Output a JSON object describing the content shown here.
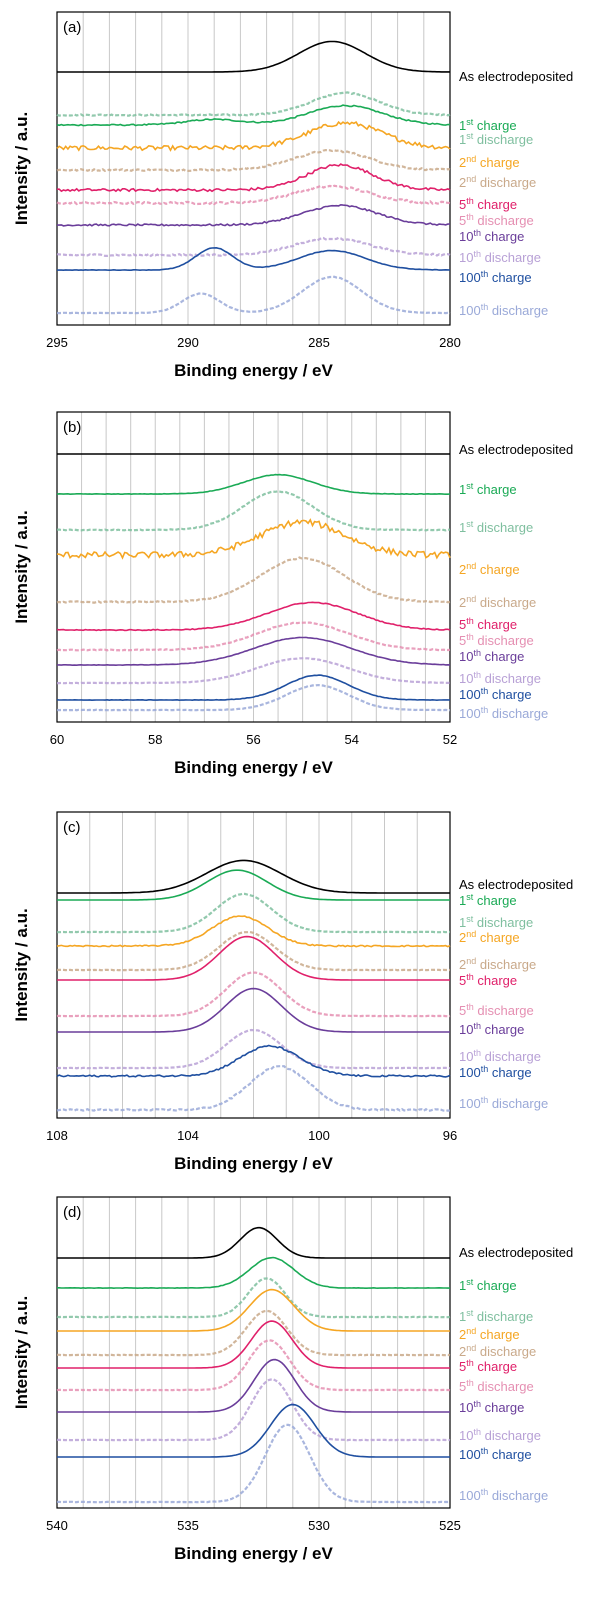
{
  "chart_data": [
    {
      "type": "line",
      "panel": "(a)",
      "xlabel": "Binding energy / eV",
      "ylabel": "Intensity / a.u.",
      "xlim": [
        295,
        280
      ],
      "x_ticks": [
        "295",
        "290",
        "285",
        "280"
      ],
      "grid": "vertical every 1 eV",
      "series": [
        {
          "label_main": "As electrodeposited",
          "label_sup": "",
          "label_rest": "",
          "color": "#000000",
          "dashed": false,
          "noise": 0.0,
          "peaks": [
            [
              284.5,
              55,
              1.8
            ]
          ]
        },
        {
          "label_main": "1",
          "label_sup": "st",
          "label_rest": " charge",
          "color": "#1aaa55",
          "dashed": false,
          "noise": 0.3,
          "peaks": [
            [
              284.0,
              35,
              2.0
            ],
            [
              289.0,
              10,
              1.5
            ]
          ]
        },
        {
          "label_main": "1",
          "label_sup": "st",
          "label_rest": " discharge",
          "color": "#7fbf9f",
          "dashed": true,
          "noise": 0.3,
          "peaks": [
            [
              284.0,
              40,
              1.8
            ]
          ]
        },
        {
          "label_main": "2",
          "label_sup": "nd",
          "label_rest": " charge",
          "color": "#f5a623",
          "dashed": false,
          "noise": 1.0,
          "peaks": [
            [
              284.0,
              45,
              2.0
            ]
          ]
        },
        {
          "label_main": "2",
          "label_sup": "nd",
          "label_rest": " discharge",
          "color": "#c9a98a",
          "dashed": true,
          "noise": 0.4,
          "peaks": [
            [
              284.5,
              35,
              2.0
            ]
          ]
        },
        {
          "label_main": "5",
          "label_sup": "th",
          "label_rest": " charge",
          "color": "#e0206a",
          "dashed": false,
          "noise": 0.6,
          "peaks": [
            [
              284.2,
              45,
              1.8
            ]
          ]
        },
        {
          "label_main": "5",
          "label_sup": "th",
          "label_rest": " discharge",
          "color": "#e58fb2",
          "dashed": true,
          "noise": 0.5,
          "peaks": [
            [
              284.5,
              30,
              2.0
            ]
          ]
        },
        {
          "label_main": "10",
          "label_sup": "th",
          "label_rest": " charge",
          "color": "#6a3d9a",
          "dashed": false,
          "noise": 0.4,
          "peaks": [
            [
              284.2,
              35,
              2.0
            ]
          ]
        },
        {
          "label_main": "10",
          "label_sup": "th",
          "label_rest": " discharge",
          "color": "#b8a1d6",
          "dashed": true,
          "noise": 0.4,
          "peaks": [
            [
              284.5,
              30,
              2.0
            ]
          ]
        },
        {
          "label_main": "100",
          "label_sup": "th",
          "label_rest": " charge",
          "color": "#1f4fa0",
          "dashed": false,
          "noise": 0.1,
          "peaks": [
            [
              289.0,
              40,
              1.0
            ],
            [
              284.5,
              35,
              1.8
            ]
          ]
        },
        {
          "label_main": "100",
          "label_sup": "th",
          "label_rest": " discharge",
          "color": "#9aa9d8",
          "dashed": true,
          "noise": 0.1,
          "peaks": [
            [
              289.5,
              35,
              1.0
            ],
            [
              284.5,
              65,
              1.6
            ]
          ]
        }
      ]
    },
    {
      "type": "line",
      "panel": "(b)",
      "xlabel": "Binding energy / eV",
      "ylabel": "Intensity / a.u.",
      "xlim": [
        60,
        52
      ],
      "x_ticks": [
        "60",
        "58",
        "56",
        "54",
        "52"
      ],
      "grid": "vertical every 0.5 eV",
      "series": [
        {
          "label_main": "As electrodeposited",
          "label_sup": "",
          "label_rest": "",
          "color": "#000000",
          "dashed": false,
          "noise": 0.0,
          "peaks": []
        },
        {
          "label_main": "1",
          "label_sup": "st",
          "label_rest": " charge",
          "color": "#1aaa55",
          "dashed": false,
          "noise": 0.1,
          "peaks": [
            [
              55.5,
              35,
              1.0
            ]
          ]
        },
        {
          "label_main": "1",
          "label_sup": "st",
          "label_rest": " discharge",
          "color": "#7fbf9f",
          "dashed": true,
          "noise": 0.2,
          "peaks": [
            [
              55.5,
              70,
              1.0
            ]
          ]
        },
        {
          "label_main": "2",
          "label_sup": "nd",
          "label_rest": " charge",
          "color": "#f5a623",
          "dashed": false,
          "noise": 1.4,
          "peaks": [
            [
              55.0,
              60,
              1.2
            ]
          ]
        },
        {
          "label_main": "2",
          "label_sup": "nd",
          "label_rest": " discharge",
          "color": "#c9a98a",
          "dashed": true,
          "noise": 0.3,
          "peaks": [
            [
              55.0,
              80,
              1.2
            ]
          ]
        },
        {
          "label_main": "5",
          "label_sup": "th",
          "label_rest": " charge",
          "color": "#e0206a",
          "dashed": false,
          "noise": 0.2,
          "peaks": [
            [
              54.8,
              50,
              1.3
            ]
          ]
        },
        {
          "label_main": "5",
          "label_sup": "th",
          "label_rest": " discharge",
          "color": "#e58fb2",
          "dashed": true,
          "noise": 0.2,
          "peaks": [
            [
              55.0,
              50,
              1.3
            ]
          ]
        },
        {
          "label_main": "10",
          "label_sup": "th",
          "label_rest": " charge",
          "color": "#6a3d9a",
          "dashed": false,
          "noise": 0.1,
          "peaks": [
            [
              55.0,
              50,
              1.4
            ]
          ]
        },
        {
          "label_main": "10",
          "label_sup": "th",
          "label_rest": " discharge",
          "color": "#b8a1d6",
          "dashed": true,
          "noise": 0.1,
          "peaks": [
            [
              55.0,
              45,
              1.3
            ]
          ]
        },
        {
          "label_main": "100",
          "label_sup": "th",
          "label_rest": " charge",
          "color": "#1f4fa0",
          "dashed": false,
          "noise": 0.1,
          "peaks": [
            [
              54.7,
              45,
              0.9
            ]
          ]
        },
        {
          "label_main": "100",
          "label_sup": "th",
          "label_rest": " discharge",
          "color": "#9aa9d8",
          "dashed": true,
          "noise": 0.1,
          "peaks": [
            [
              54.7,
              45,
              0.9
            ]
          ]
        }
      ]
    },
    {
      "type": "line",
      "panel": "(c)",
      "xlabel": "Binding energy / eV",
      "ylabel": "Intensity / a.u.",
      "xlim": [
        108,
        96
      ],
      "x_ticks": [
        "108",
        "104",
        "100",
        "96"
      ],
      "grid": "vertical every 1 eV",
      "series": [
        {
          "label_main": "As electrodeposited",
          "label_sup": "",
          "label_rest": "",
          "color": "#000000",
          "dashed": false,
          "noise": 0.0,
          "peaks": [
            [
              102.3,
              60,
              1.6
            ]
          ]
        },
        {
          "label_main": "1",
          "label_sup": "st",
          "label_rest": " charge",
          "color": "#1aaa55",
          "dashed": false,
          "noise": 0.0,
          "peaks": [
            [
              102.5,
              55,
              1.3
            ]
          ]
        },
        {
          "label_main": "1",
          "label_sup": "st",
          "label_rest": " discharge",
          "color": "#7fbf9f",
          "dashed": true,
          "noise": 0.1,
          "peaks": [
            [
              102.3,
              70,
              1.2
            ]
          ]
        },
        {
          "label_main": "2",
          "label_sup": "nd",
          "label_rest": " charge",
          "color": "#f5a623",
          "dashed": false,
          "noise": 0.3,
          "peaks": [
            [
              102.4,
              55,
              1.2
            ]
          ]
        },
        {
          "label_main": "2",
          "label_sup": "nd",
          "label_rest": " discharge",
          "color": "#c9a98a",
          "dashed": true,
          "noise": 0.1,
          "peaks": [
            [
              102.2,
              70,
              1.2
            ]
          ]
        },
        {
          "label_main": "5",
          "label_sup": "th",
          "label_rest": " charge",
          "color": "#e0206a",
          "dashed": false,
          "noise": 0.0,
          "peaks": [
            [
              102.2,
              80,
              1.2
            ]
          ]
        },
        {
          "label_main": "5",
          "label_sup": "th",
          "label_rest": " discharge",
          "color": "#e58fb2",
          "dashed": true,
          "noise": 0.1,
          "peaks": [
            [
              102.0,
              80,
              1.2
            ]
          ]
        },
        {
          "label_main": "10",
          "label_sup": "th",
          "label_rest": " charge",
          "color": "#6a3d9a",
          "dashed": false,
          "noise": 0.0,
          "peaks": [
            [
              102.0,
              80,
              1.2
            ]
          ]
        },
        {
          "label_main": "10",
          "label_sup": "th",
          "label_rest": " discharge",
          "color": "#b8a1d6",
          "dashed": true,
          "noise": 0.1,
          "peaks": [
            [
              102.0,
              70,
              1.2
            ]
          ]
        },
        {
          "label_main": "100",
          "label_sup": "th",
          "label_rest": " charge",
          "color": "#1f4fa0",
          "dashed": false,
          "noise": 0.4,
          "peaks": [
            [
              101.5,
              55,
              1.3
            ]
          ]
        },
        {
          "label_main": "100",
          "label_sup": "th",
          "label_rest": " discharge",
          "color": "#9aa9d8",
          "dashed": true,
          "noise": 0.4,
          "peaks": [
            [
              101.2,
              80,
              1.3
            ]
          ]
        }
      ]
    },
    {
      "type": "line",
      "panel": "(d)",
      "xlabel": "Binding energy / eV",
      "ylabel": "Intensity / a.u.",
      "xlim": [
        540,
        525
      ],
      "x_ticks": [
        "540",
        "535",
        "530",
        "525"
      ],
      "grid": "vertical every 1 eV",
      "series": [
        {
          "label_main": "As electrodeposited",
          "label_sup": "",
          "label_rest": "",
          "color": "#000000",
          "dashed": false,
          "noise": 0.0,
          "peaks": [
            [
              532.3,
              55,
              1.0
            ]
          ]
        },
        {
          "label_main": "1",
          "label_sup": "st",
          "label_rest": " charge",
          "color": "#1aaa55",
          "dashed": false,
          "noise": 0.1,
          "peaks": [
            [
              531.8,
              55,
              1.2
            ]
          ]
        },
        {
          "label_main": "1",
          "label_sup": "st",
          "label_rest": " discharge",
          "color": "#7fbf9f",
          "dashed": true,
          "noise": 0.1,
          "peaks": [
            [
              532.0,
              70,
              1.0
            ]
          ]
        },
        {
          "label_main": "2",
          "label_sup": "nd",
          "label_rest": " charge",
          "color": "#f5a623",
          "dashed": false,
          "noise": 0.0,
          "peaks": [
            [
              531.8,
              75,
              1.2
            ]
          ]
        },
        {
          "label_main": "2",
          "label_sup": "nd",
          "label_rest": " discharge",
          "color": "#c9a98a",
          "dashed": true,
          "noise": 0.1,
          "peaks": [
            [
              532.0,
              80,
              1.1
            ]
          ]
        },
        {
          "label_main": "5",
          "label_sup": "th",
          "label_rest": " charge",
          "color": "#e0206a",
          "dashed": false,
          "noise": 0.0,
          "peaks": [
            [
              531.8,
              85,
              1.1
            ]
          ]
        },
        {
          "label_main": "5",
          "label_sup": "th",
          "label_rest": " discharge",
          "color": "#e58fb2",
          "dashed": true,
          "noise": 0.1,
          "peaks": [
            [
              531.9,
              90,
              1.1
            ]
          ]
        },
        {
          "label_main": "10",
          "label_sup": "th",
          "label_rest": " charge",
          "color": "#6a3d9a",
          "dashed": false,
          "noise": 0.0,
          "peaks": [
            [
              531.7,
              95,
              1.1
            ]
          ]
        },
        {
          "label_main": "10",
          "label_sup": "th",
          "label_rest": " discharge",
          "color": "#b8a1d6",
          "dashed": true,
          "noise": 0.1,
          "peaks": [
            [
              531.8,
              110,
              1.1
            ]
          ]
        },
        {
          "label_main": "100",
          "label_sup": "th",
          "label_rest": " charge",
          "color": "#1f4fa0",
          "dashed": false,
          "noise": 0.0,
          "peaks": [
            [
              531.0,
              95,
              1.2
            ]
          ]
        },
        {
          "label_main": "100",
          "label_sup": "th",
          "label_rest": " discharge",
          "color": "#9aa9d8",
          "dashed": true,
          "noise": 0.1,
          "peaks": [
            [
              531.2,
              140,
              1.2
            ]
          ]
        }
      ]
    }
  ]
}
